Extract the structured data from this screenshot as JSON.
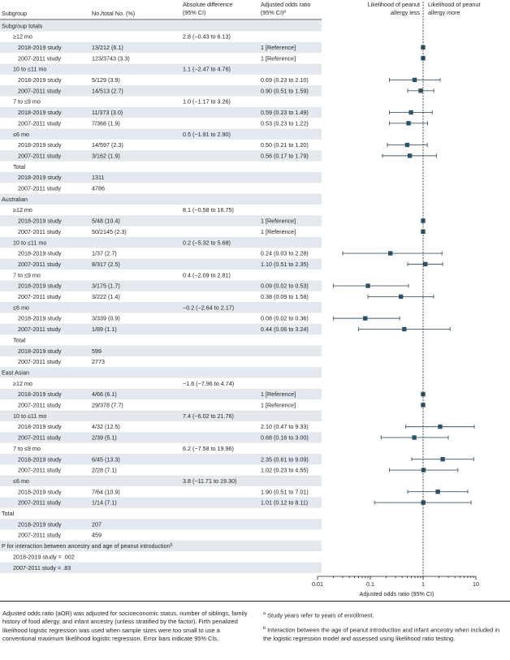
{
  "headers": {
    "subgroup": "Subgroup",
    "n": "No./total No. (%)",
    "absdiff_1": "Absolute difference",
    "absdiff_2": "(95% CI)",
    "aor_1": "Adjusted odds ratio",
    "aor_2": "(95% CI)ª",
    "less_1": "Likelihood of peanut",
    "less_2": "allergy less",
    "more_1": "Likelihood of peanut",
    "more_2": "allergy more"
  },
  "rows": [
    {
      "kind": "section",
      "label": "Subgroup totals"
    },
    {
      "kind": "group",
      "label": "≥12 mo",
      "diff": "2.8 (−0.43 to 6.13)"
    },
    {
      "kind": "study",
      "label": "2018-2019 study",
      "n": "13/212 (6.1)",
      "aor": "1 [Reference]",
      "or": 1,
      "lo": null,
      "hi": null
    },
    {
      "kind": "study",
      "label": "2007-2011 study",
      "n": "123/3743 (3.3)",
      "aor": "1 [Reference]",
      "or": 1,
      "lo": null,
      "hi": null
    },
    {
      "kind": "group",
      "label": "10 to ≤11 mo",
      "diff": "1.1 (−2.47 to 4.76)"
    },
    {
      "kind": "study",
      "label": "2018-2019 study",
      "n": "5/129 (3.9)",
      "aor": "0.69 (0.23 to 2.10)",
      "or": 0.69,
      "lo": 0.23,
      "hi": 2.1
    },
    {
      "kind": "study",
      "label": "2007-2011 study",
      "n": "14/513 (2.7)",
      "aor": "0.90 (0.51 to 1.59)",
      "or": 0.9,
      "lo": 0.51,
      "hi": 1.59
    },
    {
      "kind": "group",
      "label": "7 to ≤9 mo",
      "diff": "1.0 (−1.17 to 3.26)"
    },
    {
      "kind": "study",
      "label": "2018-2019 study",
      "n": "11/373 (3.0)",
      "aor": "0.59 (0.23 to 1.49)",
      "or": 0.59,
      "lo": 0.23,
      "hi": 1.49
    },
    {
      "kind": "study",
      "label": "2007-2011 study",
      "n": "7/368 (1.9)",
      "aor": "0.53 (0.23 to 1.22)",
      "or": 0.53,
      "lo": 0.23,
      "hi": 1.22
    },
    {
      "kind": "group",
      "label": "≤6 mo",
      "diff": "0.5 (−1.91 to 2.90)"
    },
    {
      "kind": "study",
      "label": "2018-2019 study",
      "n": "14/597 (2.3)",
      "aor": "0.50 (0.21 to 1.20)",
      "or": 0.5,
      "lo": 0.21,
      "hi": 1.2
    },
    {
      "kind": "study",
      "label": "2007-2011 study",
      "n": "3/162 (1.9)",
      "aor": "0.56 (0.17 to 1.79)",
      "or": 0.56,
      "lo": 0.17,
      "hi": 1.79
    },
    {
      "kind": "group",
      "label": "Total",
      "diff": ""
    },
    {
      "kind": "study",
      "label": "2018-2019 study",
      "n": "1311",
      "aor": "",
      "or": null,
      "lo": null,
      "hi": null
    },
    {
      "kind": "study",
      "label": "2007-2011 study",
      "n": "4786",
      "aor": "",
      "or": null,
      "lo": null,
      "hi": null
    },
    {
      "kind": "section",
      "label": "Australian"
    },
    {
      "kind": "group",
      "label": "≥12 mo",
      "diff": "8.1 (−0.58 to 16.75)"
    },
    {
      "kind": "study",
      "label": "2018-2019 study",
      "n": "5/48 (10.4)",
      "aor": "1 [Reference]",
      "or": 1,
      "lo": null,
      "hi": null
    },
    {
      "kind": "study",
      "label": "2007-2011 study",
      "n": "50/2145 (2.3)",
      "aor": "1 [Reference]",
      "or": 1,
      "lo": null,
      "hi": null
    },
    {
      "kind": "group",
      "label": "10 to ≤11 mo",
      "diff": "0.2 (−5.32 to 5.68)"
    },
    {
      "kind": "study",
      "label": "2018-2019 study",
      "n": "1/37 (2.7)",
      "aor": "0.24 (0.03 to 2.28)",
      "or": 0.24,
      "lo": 0.03,
      "hi": 2.28
    },
    {
      "kind": "study",
      "label": "2007-2011 study",
      "n": "8/317 (2.5)",
      "aor": "1.10 (0.51 to 2.35)",
      "or": 1.1,
      "lo": 0.51,
      "hi": 2.35
    },
    {
      "kind": "group",
      "label": "7 to ≤9 mo",
      "diff": "0.4 (−2.09 to 2.81)"
    },
    {
      "kind": "study",
      "label": "2018-2019 study",
      "n": "3/175 (1.7)",
      "aor": "0.09 (0.02 to 0.53)",
      "or": 0.09,
      "lo": 0.02,
      "hi": 0.53
    },
    {
      "kind": "study",
      "label": "2007-2011 study",
      "n": "3/222 (1.4)",
      "aor": "0.38 (0.09 to 1.58)",
      "or": 0.38,
      "lo": 0.09,
      "hi": 1.58
    },
    {
      "kind": "group",
      "label": "≤6 mo",
      "diff": "−0.2 (−2.64 to 2.17)"
    },
    {
      "kind": "study",
      "label": "2018-2019 study",
      "n": "3/339 (0.9)",
      "aor": "0.08 (0.02 to 0.36)",
      "or": 0.08,
      "lo": 0.02,
      "hi": 0.36
    },
    {
      "kind": "study",
      "label": "2007-2011 study",
      "n": "1/89 (1.1)",
      "aor": "0.44 (0.06 to 3.24)",
      "or": 0.44,
      "lo": 0.06,
      "hi": 3.24
    },
    {
      "kind": "group",
      "label": "Total",
      "diff": ""
    },
    {
      "kind": "study",
      "label": "2018-2019 study",
      "n": "599",
      "aor": "",
      "or": null,
      "lo": null,
      "hi": null
    },
    {
      "kind": "study",
      "label": "2007-2011 study",
      "n": "2773",
      "aor": "",
      "or": null,
      "lo": null,
      "hi": null
    },
    {
      "kind": "section",
      "label": "East Asian"
    },
    {
      "kind": "group",
      "label": "≥12 mo",
      "diff": "−1.6 (−7.96 to 4.74)"
    },
    {
      "kind": "study",
      "label": "2018-2019 study",
      "n": "4/66 (6.1)",
      "aor": "1 [Reference]",
      "or": 1,
      "lo": null,
      "hi": null
    },
    {
      "kind": "study",
      "label": "2007-2011 study",
      "n": "29/378 (7.7)",
      "aor": "1 [Reference]",
      "or": 1,
      "lo": null,
      "hi": null
    },
    {
      "kind": "group",
      "label": "10 to ≤11 mo",
      "diff": "7.4 (−6.02 to 21.76)"
    },
    {
      "kind": "study",
      "label": "2018-2019 study",
      "n": "4/32 (12.5)",
      "aor": "2.10 (0.47 to 9.33)",
      "or": 2.1,
      "lo": 0.47,
      "hi": 9.33
    },
    {
      "kind": "study",
      "label": "2007-2011 study",
      "n": "2/39 (5.1)",
      "aor": "0.68 (0.16 to 3.00)",
      "or": 0.68,
      "lo": 0.16,
      "hi": 3.0
    },
    {
      "kind": "group",
      "label": "7 to ≤9 mo",
      "diff": "6.2 (−7.58 to 19.96)"
    },
    {
      "kind": "study",
      "label": "2018-2019 study",
      "n": "6/45 (13.3)",
      "aor": "2.35 (0.61 to 9.09)",
      "or": 2.35,
      "lo": 0.61,
      "hi": 9.09
    },
    {
      "kind": "study",
      "label": "2007-2011 study",
      "n": "2/28 (7.1)",
      "aor": "1.02 (0.23 to 4.55)",
      "or": 1.02,
      "lo": 0.23,
      "hi": 4.55
    },
    {
      "kind": "group",
      "label": "≤6 mo",
      "diff": "3.8 (−11.71 to 19.30)"
    },
    {
      "kind": "study",
      "label": "2018-2019 study",
      "n": "7/64 (10.9)",
      "aor": "1.90 (0.51 to 7.01)",
      "or": 1.9,
      "lo": 0.51,
      "hi": 7.01
    },
    {
      "kind": "study",
      "label": "2007-2011 study",
      "n": "1/14 (7.1)",
      "aor": "1.01 (0.12 to 8.11)",
      "or": 1.01,
      "lo": 0.12,
      "hi": 8.11
    },
    {
      "kind": "section",
      "label": "Total"
    },
    {
      "kind": "study",
      "label": "2018-2019 study",
      "n": "207",
      "aor": "",
      "or": null,
      "lo": null,
      "hi": null
    },
    {
      "kind": "study",
      "label": "2007-2011 study",
      "n": "459",
      "aor": "",
      "or": null,
      "lo": null,
      "hi": null
    },
    {
      "kind": "interaction",
      "label": "P for interaction between ancestry and age of peanut introduction",
      "sup": "b"
    },
    {
      "kind": "pval",
      "label": "2018-2019 study = .002"
    },
    {
      "kind": "pval",
      "label": "2007-2011 study = .83"
    }
  ],
  "chart_data": {
    "type": "forest",
    "xscale": "log",
    "xlim": [
      0.01,
      10
    ],
    "xticks": [
      "0.01",
      "0.1",
      "1",
      "10"
    ],
    "xlabel": "Adjusted odds ratio (95% CI)",
    "reference_line": 1
  },
  "footnotes": {
    "left": "Adjusted odds ratio (aOR) was adjusted for socioeconomic status, number of siblings, family history of food allergy, and infant ancestry (unless stratified by the factor). Firth penalized likelihood logistic regression was used when sample sizes were too small to use a conventional maximum likelihood logistic regression. Error bars indicate 95% CIs.",
    "a": "Study years refer to years of enrollment.",
    "b": "Interaction between the age of peanut introduction and infant ancestry when included in the logistic regression model and assessed using likelihood ratio testing."
  },
  "colors": {
    "band": "#e4e9ef",
    "marker": "#2f5366",
    "errorbar": "#3d5a6b"
  }
}
